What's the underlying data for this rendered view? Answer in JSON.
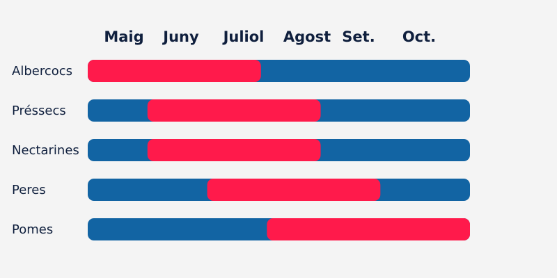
{
  "chart_data": {
    "type": "bar",
    "months": [
      "Maig",
      "Juny",
      "Juliol",
      "Agost",
      "Set.",
      "Oct."
    ],
    "rows": [
      {
        "label": "Albercocs",
        "start": 0,
        "end": 2.9
      },
      {
        "label": "Préssecs",
        "start": 1,
        "end": 3.9
      },
      {
        "label": "Nectarines",
        "start": 1,
        "end": 3.9
      },
      {
        "label": "Peres",
        "start": 2,
        "end": 4.9
      },
      {
        "label": "Pomes",
        "start": 3,
        "end": 6.4
      }
    ],
    "range": [
      0,
      6.4
    ]
  },
  "colors": {
    "background": "#f4f4f4",
    "track": "#1264a3",
    "season": "#ff1a4b",
    "text": "#0f1f3d"
  }
}
